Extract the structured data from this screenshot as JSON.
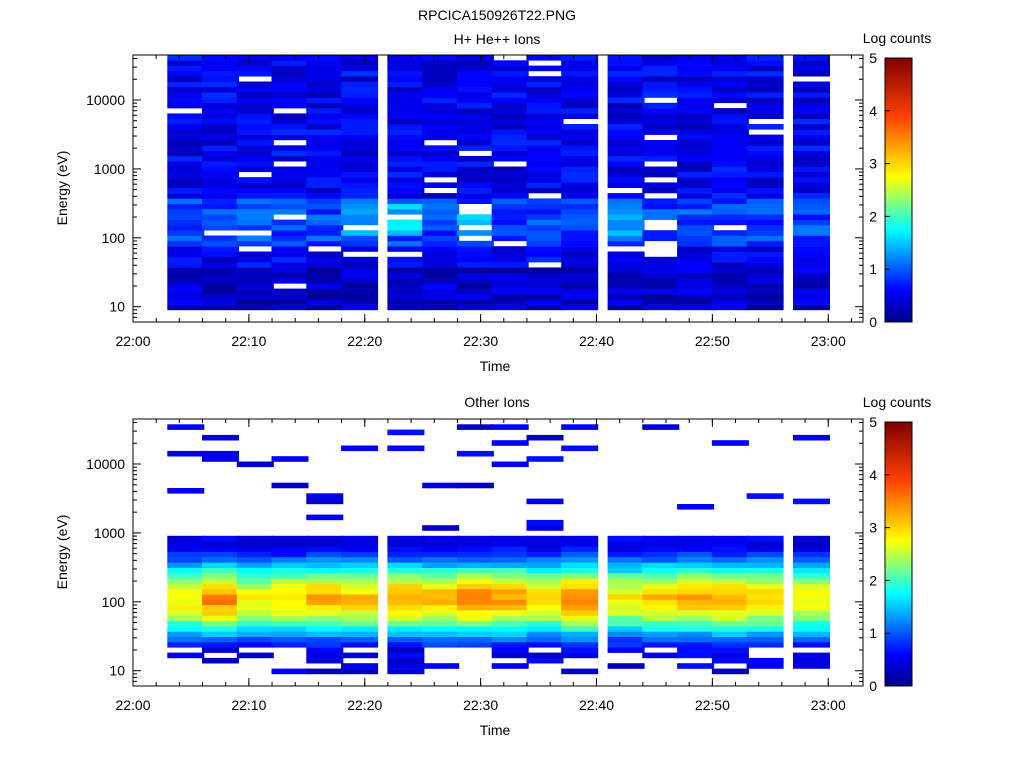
{
  "page_title": "RPCICA150926T22.PNG",
  "chart_data": [
    {
      "type": "heatmap",
      "title": "H+ He++ Ions",
      "xlabel": "Time",
      "ylabel": "Energy (eV)",
      "x_ticks": [
        "22:00",
        "22:10",
        "22:20",
        "22:30",
        "22:40",
        "22:50",
        "23:00"
      ],
      "x_range": [
        "22:00",
        "23:03"
      ],
      "y_scale": "log",
      "y_range": [
        6,
        45000
      ],
      "y_tick_labels": [
        "10",
        "100",
        "1000",
        "10000"
      ],
      "y_tick_values": [
        10,
        100,
        1000,
        10000
      ],
      "colorbar": {
        "label": "Log counts",
        "min": 0,
        "max": 5,
        "ticks": [
          "0",
          "1",
          "2",
          "3",
          "4",
          "5"
        ]
      },
      "time_columns": [
        "22:03",
        "22:06",
        "22:09",
        "22:12",
        "22:15",
        "22:18",
        "22:22",
        "22:25",
        "22:28",
        "22:31",
        "22:34",
        "22:37",
        "22:41",
        "22:44",
        "22:47",
        "22:50",
        "22:53",
        "22:57"
      ],
      "energy_edges_ev": [
        6,
        9,
        15,
        45000
      ],
      "approx_levels": [
        {
          "energy_range_ev": [
            100,
            45000
          ],
          "log_counts": [
            0.5,
            0.9
          ]
        },
        {
          "energy_range_ev": [
            50,
            300
          ],
          "log_counts": [
            0.8,
            1.8
          ]
        },
        {
          "energy_range_ev": [
            9,
            50
          ],
          "log_counts": [
            0.3,
            0.8
          ]
        }
      ],
      "grid": false
    },
    {
      "type": "heatmap",
      "title": "Other Ions",
      "xlabel": "Time",
      "ylabel": "Energy (eV)",
      "x_ticks": [
        "22:00",
        "22:10",
        "22:20",
        "22:30",
        "22:40",
        "22:50",
        "23:00"
      ],
      "x_range": [
        "22:00",
        "23:03"
      ],
      "y_scale": "log",
      "y_range": [
        6,
        45000
      ],
      "y_tick_labels": [
        "10",
        "100",
        "1000",
        "10000"
      ],
      "y_tick_values": [
        10,
        100,
        1000,
        10000
      ],
      "colorbar": {
        "label": "Log counts",
        "min": 0,
        "max": 5,
        "ticks": [
          "0",
          "1",
          "2",
          "3",
          "4",
          "5"
        ]
      },
      "time_columns": [
        "22:03",
        "22:06",
        "22:09",
        "22:12",
        "22:15",
        "22:18",
        "22:22",
        "22:25",
        "22:28",
        "22:31",
        "22:34",
        "22:37",
        "22:41",
        "22:44",
        "22:47",
        "22:50",
        "22:53",
        "22:57"
      ],
      "peak_log_counts": [
        3.2,
        3.7,
        3.1,
        3.3,
        3.5,
        3.4,
        3.6,
        3.5,
        3.7,
        3.6,
        3.3,
        3.8,
        3.2,
        3.4,
        3.5,
        3.6,
        3.4,
        3.2
      ],
      "peak_energy_ev": 110,
      "band_energy_range_ev": [
        20,
        900
      ],
      "grid": false
    }
  ]
}
